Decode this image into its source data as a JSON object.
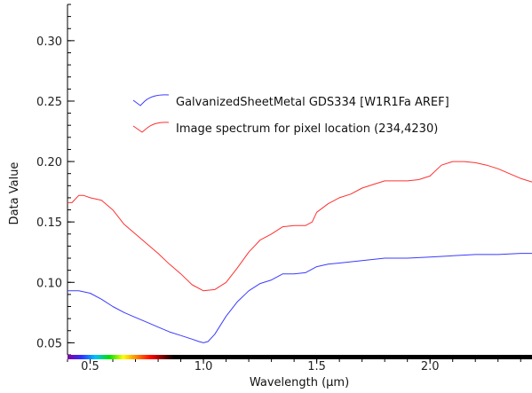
{
  "chart_data": {
    "type": "line",
    "xlabel": "Wavelength (µm)",
    "ylabel": "Data Value",
    "xlim": [
      0.4,
      2.45
    ],
    "ylim": [
      0.04,
      0.33
    ],
    "xticks": [
      0.5,
      1.0,
      1.5,
      2.0
    ],
    "yticks": [
      0.05,
      0.1,
      0.15,
      0.2,
      0.25,
      0.3
    ],
    "grid": false,
    "legend_position": "center",
    "series": [
      {
        "name": "GalvanizedSheetMetal GDS334 [W1R1Fa AREF]",
        "color": "#3b3bff",
        "x": [
          0.4,
          0.45,
          0.5,
          0.55,
          0.6,
          0.65,
          0.7,
          0.75,
          0.8,
          0.85,
          0.9,
          0.95,
          0.98,
          1.0,
          1.02,
          1.05,
          1.1,
          1.15,
          1.2,
          1.25,
          1.3,
          1.35,
          1.4,
          1.45,
          1.5,
          1.55,
          1.6,
          1.7,
          1.8,
          1.9,
          2.0,
          2.1,
          2.2,
          2.3,
          2.4,
          2.45
        ],
        "y": [
          0.093,
          0.093,
          0.091,
          0.086,
          0.08,
          0.075,
          0.071,
          0.067,
          0.063,
          0.059,
          0.056,
          0.053,
          0.051,
          0.05,
          0.051,
          0.057,
          0.072,
          0.084,
          0.093,
          0.099,
          0.102,
          0.107,
          0.107,
          0.108,
          0.113,
          0.115,
          0.116,
          0.118,
          0.12,
          0.12,
          0.121,
          0.122,
          0.123,
          0.123,
          0.124,
          0.124
        ]
      },
      {
        "name": "Image spectrum for pixel location (234,4230)",
        "color": "#ff3030",
        "x": [
          0.4,
          0.42,
          0.45,
          0.47,
          0.5,
          0.55,
          0.6,
          0.65,
          0.7,
          0.75,
          0.8,
          0.85,
          0.9,
          0.95,
          1.0,
          1.05,
          1.1,
          1.15,
          1.2,
          1.25,
          1.3,
          1.35,
          1.4,
          1.45,
          1.48,
          1.5,
          1.55,
          1.6,
          1.65,
          1.7,
          1.75,
          1.8,
          1.85,
          1.9,
          1.95,
          2.0,
          2.05,
          2.1,
          2.15,
          2.2,
          2.25,
          2.3,
          2.35,
          2.4,
          2.45
        ],
        "y": [
          0.166,
          0.166,
          0.172,
          0.172,
          0.17,
          0.168,
          0.16,
          0.148,
          0.14,
          0.132,
          0.124,
          0.115,
          0.107,
          0.098,
          0.093,
          0.094,
          0.1,
          0.112,
          0.125,
          0.135,
          0.14,
          0.146,
          0.147,
          0.147,
          0.15,
          0.158,
          0.165,
          0.17,
          0.173,
          0.178,
          0.181,
          0.184,
          0.184,
          0.184,
          0.185,
          0.188,
          0.197,
          0.2,
          0.2,
          0.199,
          0.197,
          0.194,
          0.19,
          0.186,
          0.183
        ]
      }
    ]
  }
}
